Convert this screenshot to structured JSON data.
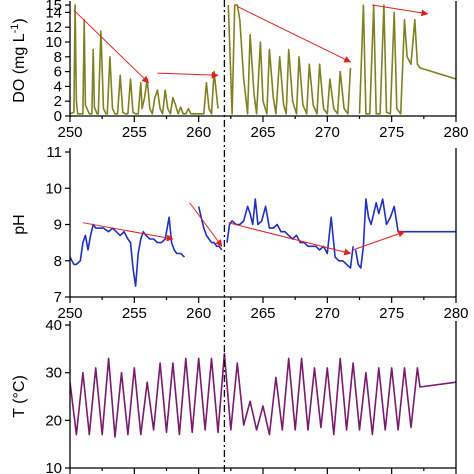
{
  "colors": {
    "do": "#808020",
    "ph": "#1f2fbf",
    "temp": "#7a1a6e",
    "trend": "#e0201e",
    "axis": "#000000"
  },
  "chart_data": [
    {
      "id": "do",
      "type": "line",
      "ylabel": "DO (mg L",
      "ylabel_sup": "-1",
      "ylabel_suffix": ")",
      "xlim": [
        250,
        280
      ],
      "ylim": [
        0,
        15
      ],
      "x_ticks": [
        "250",
        "255",
        "260",
        "265",
        "270",
        "275",
        "280"
      ],
      "y_ticks": [
        {
          "v": 0,
          "label": "0"
        },
        {
          "v": 2,
          "label": "2"
        },
        {
          "v": 4,
          "label": "4"
        },
        {
          "v": 6,
          "label": "6"
        },
        {
          "v": 8,
          "label": "8"
        },
        {
          "v": 10,
          "label": "10"
        },
        {
          "v": 12,
          "label": "12"
        },
        {
          "v": 14,
          "label": "14"
        },
        {
          "v": 15,
          "label": "15"
        }
      ],
      "segments": [
        {
          "x": [
            250,
            250.3,
            250.4,
            250.5,
            250.6,
            250.8,
            251.0,
            251.1,
            251.2,
            251.5,
            251.7,
            251.8,
            251.9,
            252.1,
            252.2,
            252.4,
            252.6,
            252.8,
            252.9,
            253.1,
            253.3,
            253.5,
            253.7,
            253.9,
            254.1,
            254.3,
            254.5,
            254.7,
            254.9,
            255.1,
            255.3,
            255.5,
            255.6,
            255.8,
            256.0,
            256.2,
            256.4,
            256.6,
            256.8,
            257.0,
            257.2,
            257.4,
            257.6,
            257.8,
            258.0,
            258.2,
            258.4,
            258.6,
            258.8,
            259.0,
            259.2,
            259.4,
            259.6,
            259.8,
            260.0,
            260.2,
            260.4,
            260.6,
            260.8,
            261.0,
            261.2,
            261.5
          ],
          "y": [
            0.3,
            0.5,
            15,
            2,
            0.3,
            0.3,
            0.3,
            13,
            1.5,
            0.3,
            0.3,
            9,
            1.2,
            0.3,
            0.3,
            11.5,
            1,
            0.3,
            0.3,
            8,
            1,
            0.3,
            0.3,
            5.5,
            0.5,
            0.3,
            0.3,
            5,
            0.5,
            0.3,
            0.3,
            4.5,
            1,
            2.5,
            5,
            1,
            0.3,
            2.5,
            3.5,
            1,
            0.3,
            3.5,
            1,
            0.3,
            2.5,
            1.5,
            0.3,
            1.2,
            0.3,
            0.3,
            1,
            0.3,
            0.3,
            0.3,
            0.3,
            0.3,
            0.3,
            4.5,
            1,
            0.3,
            6,
            1
          ]
        },
        {
          "x": [
            262.3,
            262.6,
            262.8,
            263.0,
            263.2,
            263.5,
            263.8,
            264.0,
            264.3,
            264.5,
            264.8,
            265.0,
            265.3,
            265.5,
            265.8,
            266.0,
            266.3,
            266.6,
            266.8,
            267.0,
            267.3,
            267.6,
            267.8,
            268.1,
            268.4,
            268.6,
            268.9,
            269.2,
            269.4,
            269.7,
            270.0,
            270.2,
            270.5,
            270.8,
            271.0,
            271.3,
            271.6,
            271.8
          ],
          "y": [
            15,
            0.3,
            15,
            15,
            13,
            5,
            0.3,
            11,
            3,
            0.3,
            10,
            2,
            0.3,
            9,
            2.5,
            0.3,
            8,
            1.5,
            0.3,
            9,
            2,
            0.3,
            8,
            1.5,
            0.3,
            7,
            1.5,
            0.3,
            7,
            1,
            0.3,
            5,
            1,
            0.3,
            6,
            1,
            0.3,
            6.5
          ]
        },
        {
          "x": [
            272.5,
            272.8,
            273.0,
            273.3,
            273.6,
            273.8,
            274.1,
            274.4,
            274.6,
            274.9,
            275.2,
            275.4,
            275.7,
            276.0,
            276.2,
            276.5,
            276.8,
            277.0,
            277.2,
            280
          ],
          "y": [
            0.3,
            15,
            0.3,
            0.3,
            15,
            0.3,
            0.3,
            15,
            0.5,
            0.3,
            14,
            1,
            0.3,
            13,
            8,
            7,
            13,
            7,
            6.5,
            5
          ]
        }
      ],
      "trends": [
        {
          "from": [
            250.3,
            14.3
          ],
          "to": [
            256.1,
            4.5
          ]
        },
        {
          "from": [
            256.8,
            5.8
          ],
          "to": [
            261.5,
            5.5
          ]
        },
        {
          "from": [
            263.0,
            14.8
          ],
          "to": [
            271.8,
            7.3
          ]
        },
        {
          "from": [
            273.5,
            15.0
          ],
          "to": [
            277.8,
            13.8
          ]
        }
      ]
    },
    {
      "id": "ph",
      "type": "line",
      "ylabel": "pH",
      "xlim": [
        250,
        280
      ],
      "ylim": [
        7,
        11
      ],
      "x_ticks": [
        "250",
        "255",
        "260",
        "265",
        "270",
        "275",
        "280"
      ],
      "y_ticks": [
        {
          "v": 7,
          "label": "7"
        },
        {
          "v": 8,
          "label": "8"
        },
        {
          "v": 9,
          "label": "9"
        },
        {
          "v": 10,
          "label": "10"
        },
        {
          "v": 11,
          "label": "11"
        }
      ],
      "segments": [
        {
          "x": [
            250,
            250.3,
            250.5,
            250.8,
            251.0,
            251.2,
            251.4,
            251.6,
            251.8,
            252.0,
            252.3,
            252.6,
            253.0,
            253.3,
            253.6,
            253.9,
            254.2,
            254.5,
            254.7,
            254.9,
            255.1,
            255.3,
            255.5,
            255.7,
            255.9,
            256.2,
            256.5,
            256.8,
            257.1,
            257.4,
            257.7,
            257.9,
            258.1,
            258.3,
            258.6,
            258.9
          ],
          "y": [
            8.1,
            7.9,
            7.9,
            8.0,
            8.5,
            8.7,
            8.3,
            8.7,
            9.0,
            8.9,
            8.9,
            8.9,
            8.8,
            8.9,
            8.8,
            8.7,
            8.8,
            8.6,
            8.5,
            7.8,
            7.3,
            8.2,
            8.6,
            8.8,
            8.7,
            8.6,
            8.6,
            8.5,
            8.5,
            8.6,
            9.2,
            8.5,
            8.3,
            8.2,
            8.2,
            8.1
          ]
        },
        {
          "x": [
            260.0,
            260.2,
            260.4,
            260.6,
            260.8,
            261.0,
            261.2,
            261.4,
            261.6,
            261.8
          ],
          "y": [
            9.5,
            9.2,
            8.9,
            8.7,
            8.6,
            8.5,
            8.5,
            8.4,
            8.4,
            8.3
          ]
        },
        {
          "x": [
            262.2,
            262.4,
            262.6,
            262.9,
            263.2,
            263.5,
            263.8,
            264.0,
            264.2,
            264.4,
            264.6,
            264.9,
            265.2,
            265.5,
            265.8,
            266.1,
            266.4,
            266.7,
            267.0,
            267.3,
            267.6,
            267.9,
            268.2,
            268.5,
            268.8,
            269.1,
            269.4,
            269.7,
            270.0,
            270.3,
            270.6,
            270.9,
            271.2,
            271.5,
            271.8,
            272.0
          ],
          "y": [
            8.5,
            9.0,
            9.1,
            9.0,
            9.0,
            9.1,
            9.5,
            9.3,
            9.0,
            9.7,
            9.0,
            9.1,
            9.5,
            8.9,
            8.9,
            9.0,
            8.8,
            8.8,
            8.7,
            8.6,
            8.7,
            8.5,
            8.5,
            8.4,
            8.4,
            8.4,
            8.3,
            8.4,
            8.2,
            9.2,
            8.1,
            8.0,
            8.0,
            7.9,
            7.8,
            8.4
          ]
        },
        {
          "x": [
            272.2,
            272.4,
            272.6,
            272.8,
            273.0,
            273.2,
            273.4,
            273.6,
            273.8,
            274.0,
            274.3,
            274.6,
            274.9,
            275.2,
            275.5,
            275.8,
            276.1,
            276.4,
            276.7,
            277.0,
            280
          ],
          "y": [
            8.3,
            7.9,
            7.8,
            8.4,
            9.7,
            9.2,
            9.0,
            9.3,
            9.6,
            9.3,
            9.7,
            9.0,
            9.2,
            9.5,
            8.8,
            8.8,
            8.8,
            8.8,
            8.8,
            8.8,
            8.8
          ]
        }
      ],
      "trends": [
        {
          "from": [
            251.0,
            9.05
          ],
          "to": [
            258.0,
            8.6
          ]
        },
        {
          "from": [
            259.3,
            9.6
          ],
          "to": [
            261.8,
            8.4
          ]
        },
        {
          "from": [
            262.3,
            9.05
          ],
          "to": [
            271.8,
            8.2
          ]
        },
        {
          "from": [
            272.0,
            8.3
          ],
          "to": [
            276.0,
            8.8
          ]
        }
      ]
    },
    {
      "id": "temp",
      "type": "line",
      "ylabel": "T (°C)",
      "xlim": [
        250,
        280
      ],
      "ylim": [
        10,
        40
      ],
      "y_ticks": [
        {
          "v": 10,
          "label": "10"
        },
        {
          "v": 20,
          "label": "20"
        },
        {
          "v": 30,
          "label": "30"
        },
        {
          "v": 40,
          "label": "40"
        }
      ],
      "x": [
        250.0,
        250.5,
        251.0,
        251.5,
        252.0,
        252.5,
        253.0,
        253.5,
        254.0,
        254.5,
        255.0,
        255.5,
        256.0,
        256.5,
        257.0,
        257.5,
        258.0,
        258.5,
        259.0,
        259.5,
        260.0,
        260.5,
        261.0,
        261.5,
        262.0,
        262.5,
        263.0,
        263.5,
        264.0,
        264.5,
        265.0,
        265.5,
        266.0,
        266.5,
        267.0,
        267.5,
        268.0,
        268.5,
        269.0,
        269.5,
        270.0,
        270.5,
        271.0,
        271.5,
        272.0,
        272.5,
        273.0,
        273.5,
        274.0,
        274.5,
        275.0,
        275.5,
        276.0,
        276.5,
        277.0,
        277.2,
        280.0
      ],
      "y": [
        28,
        17,
        30,
        17,
        31,
        17,
        33,
        16.5,
        30,
        17,
        31,
        17,
        28,
        18,
        32,
        17.5,
        32,
        17,
        33,
        17.5,
        33,
        18,
        33,
        17.5,
        34,
        18,
        32,
        19,
        24,
        18,
        23,
        17,
        29,
        18,
        33,
        18,
        33,
        18,
        31,
        18.5,
        31,
        17,
        33,
        18,
        32,
        18,
        30,
        17,
        31,
        18,
        31,
        18,
        31,
        18.5,
        31,
        27,
        28
      ]
    }
  ],
  "divider_x": 262
}
